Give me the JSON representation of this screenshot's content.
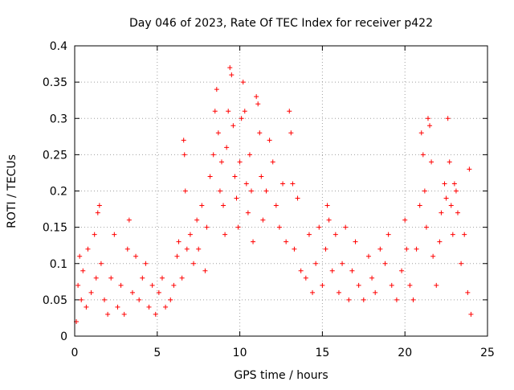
{
  "chart_data": {
    "type": "scatter",
    "title": "Day 046 of 2023, Rate Of TEC Index for receiver p422",
    "xlabel": "GPS time / hours",
    "ylabel": "ROTI / TECUs",
    "xlim": [
      0,
      25
    ],
    "ylim": [
      0,
      0.4
    ],
    "x_ticks": [
      0,
      5,
      10,
      15,
      20,
      25
    ],
    "y_ticks": [
      0,
      0.05,
      0.1,
      0.15,
      0.2,
      0.25,
      0.3,
      0.35,
      0.4
    ],
    "x_tick_labels": [
      "0",
      "5",
      "10",
      "15",
      "20",
      "25"
    ],
    "y_tick_labels": [
      "0",
      "0.05",
      "0.1",
      "0.15",
      "0.2",
      "0.25",
      "0.3",
      "0.35",
      "0.4"
    ],
    "grid": true,
    "marker": "plus",
    "color": "#ff0000",
    "series": [
      {
        "points": [
          [
            0.1,
            0.02
          ],
          [
            0.2,
            0.07
          ],
          [
            0.3,
            0.11
          ],
          [
            0.4,
            0.05
          ],
          [
            0.5,
            0.09
          ],
          [
            0.7,
            0.04
          ],
          [
            0.8,
            0.12
          ],
          [
            1.0,
            0.06
          ],
          [
            1.2,
            0.14
          ],
          [
            1.3,
            0.08
          ],
          [
            1.4,
            0.17
          ],
          [
            1.5,
            0.18
          ],
          [
            1.6,
            0.1
          ],
          [
            1.8,
            0.05
          ],
          [
            2.0,
            0.03
          ],
          [
            2.2,
            0.08
          ],
          [
            2.4,
            0.14
          ],
          [
            2.6,
            0.04
          ],
          [
            2.8,
            0.07
          ],
          [
            3.0,
            0.03
          ],
          [
            3.2,
            0.12
          ],
          [
            3.3,
            0.16
          ],
          [
            3.5,
            0.06
          ],
          [
            3.7,
            0.11
          ],
          [
            3.9,
            0.05
          ],
          [
            4.1,
            0.08
          ],
          [
            4.3,
            0.1
          ],
          [
            4.5,
            0.04
          ],
          [
            4.7,
            0.07
          ],
          [
            4.9,
            0.03
          ],
          [
            5.1,
            0.06
          ],
          [
            5.3,
            0.08
          ],
          [
            5.5,
            0.04
          ],
          [
            5.8,
            0.05
          ],
          [
            6.0,
            0.07
          ],
          [
            6.2,
            0.11
          ],
          [
            6.3,
            0.13
          ],
          [
            6.5,
            0.08
          ],
          [
            6.6,
            0.27
          ],
          [
            6.65,
            0.25
          ],
          [
            6.7,
            0.2
          ],
          [
            6.8,
            0.12
          ],
          [
            7.0,
            0.14
          ],
          [
            7.2,
            0.1
          ],
          [
            7.4,
            0.16
          ],
          [
            7.5,
            0.12
          ],
          [
            7.7,
            0.18
          ],
          [
            7.9,
            0.09
          ],
          [
            8.0,
            0.15
          ],
          [
            8.2,
            0.22
          ],
          [
            8.4,
            0.25
          ],
          [
            8.5,
            0.31
          ],
          [
            8.6,
            0.34
          ],
          [
            8.7,
            0.28
          ],
          [
            8.8,
            0.2
          ],
          [
            8.9,
            0.24
          ],
          [
            9.0,
            0.18
          ],
          [
            9.1,
            0.14
          ],
          [
            9.2,
            0.26
          ],
          [
            9.3,
            0.31
          ],
          [
            9.4,
            0.37
          ],
          [
            9.5,
            0.36
          ],
          [
            9.6,
            0.29
          ],
          [
            9.7,
            0.22
          ],
          [
            9.8,
            0.19
          ],
          [
            9.9,
            0.15
          ],
          [
            10.0,
            0.24
          ],
          [
            10.1,
            0.3
          ],
          [
            10.2,
            0.35
          ],
          [
            10.3,
            0.31
          ],
          [
            10.4,
            0.21
          ],
          [
            10.5,
            0.17
          ],
          [
            10.6,
            0.25
          ],
          [
            10.7,
            0.2
          ],
          [
            10.8,
            0.13
          ],
          [
            11.0,
            0.33
          ],
          [
            11.1,
            0.32
          ],
          [
            11.2,
            0.28
          ],
          [
            11.3,
            0.22
          ],
          [
            11.4,
            0.16
          ],
          [
            11.6,
            0.2
          ],
          [
            11.8,
            0.27
          ],
          [
            12.0,
            0.24
          ],
          [
            12.2,
            0.18
          ],
          [
            12.4,
            0.15
          ],
          [
            12.6,
            0.21
          ],
          [
            12.8,
            0.13
          ],
          [
            13.0,
            0.31
          ],
          [
            13.1,
            0.28
          ],
          [
            13.2,
            0.21
          ],
          [
            13.3,
            0.12
          ],
          [
            13.5,
            0.19
          ],
          [
            13.7,
            0.09
          ],
          [
            14.0,
            0.08
          ],
          [
            14.2,
            0.14
          ],
          [
            14.4,
            0.06
          ],
          [
            14.6,
            0.1
          ],
          [
            14.8,
            0.15
          ],
          [
            15.0,
            0.07
          ],
          [
            15.2,
            0.12
          ],
          [
            15.3,
            0.18
          ],
          [
            15.4,
            0.16
          ],
          [
            15.6,
            0.09
          ],
          [
            15.8,
            0.14
          ],
          [
            16.0,
            0.06
          ],
          [
            16.2,
            0.1
          ],
          [
            16.4,
            0.15
          ],
          [
            16.6,
            0.05
          ],
          [
            16.8,
            0.09
          ],
          [
            17.0,
            0.13
          ],
          [
            17.2,
            0.07
          ],
          [
            17.5,
            0.05
          ],
          [
            17.8,
            0.11
          ],
          [
            18.0,
            0.08
          ],
          [
            18.2,
            0.06
          ],
          [
            18.5,
            0.12
          ],
          [
            18.8,
            0.1
          ],
          [
            19.0,
            0.14
          ],
          [
            19.2,
            0.07
          ],
          [
            19.5,
            0.05
          ],
          [
            19.8,
            0.09
          ],
          [
            20.0,
            0.16
          ],
          [
            20.1,
            0.12
          ],
          [
            20.3,
            0.07
          ],
          [
            20.5,
            0.05
          ],
          [
            20.7,
            0.12
          ],
          [
            20.9,
            0.18
          ],
          [
            21.0,
            0.28
          ],
          [
            21.1,
            0.25
          ],
          [
            21.2,
            0.2
          ],
          [
            21.3,
            0.15
          ],
          [
            21.4,
            0.3
          ],
          [
            21.5,
            0.29
          ],
          [
            21.6,
            0.24
          ],
          [
            21.7,
            0.11
          ],
          [
            21.9,
            0.07
          ],
          [
            22.1,
            0.13
          ],
          [
            22.2,
            0.17
          ],
          [
            22.4,
            0.21
          ],
          [
            22.5,
            0.19
          ],
          [
            22.6,
            0.3
          ],
          [
            22.7,
            0.24
          ],
          [
            22.8,
            0.18
          ],
          [
            22.9,
            0.14
          ],
          [
            23.0,
            0.21
          ],
          [
            23.1,
            0.2
          ],
          [
            23.2,
            0.17
          ],
          [
            23.4,
            0.1
          ],
          [
            23.6,
            0.14
          ],
          [
            23.8,
            0.06
          ],
          [
            23.9,
            0.23
          ],
          [
            24.0,
            0.03
          ]
        ]
      }
    ]
  }
}
